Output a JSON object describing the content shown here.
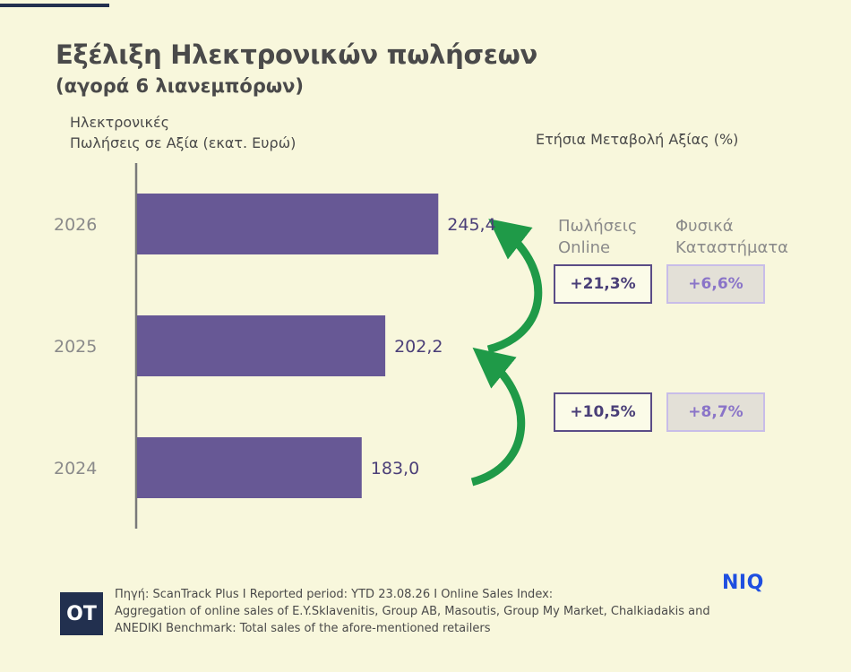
{
  "header": {
    "title": "Εξέλιξη Ηλεκτρονικών πωλήσεων",
    "subtitle": "(αγορά 6 λιανεμπόρων)"
  },
  "axis": {
    "left_label_line1": "Ηλεκτρονικές",
    "left_label_line2": "Πωλήσεις σε Αξία (εκατ. Ευρώ)",
    "right_label": "Ετήσια Μεταβολή Αξίας (%)"
  },
  "changes": {
    "online_header_line1": "Πωλήσεις",
    "online_header_line2": "Online",
    "physical_header_line1": "Φυσικά",
    "physical_header_line2": "Καταστήματα",
    "rows": [
      {
        "online": "+21,3%",
        "physical": "+6,6%"
      },
      {
        "online": "+10,5%",
        "physical": "+8,7%"
      }
    ]
  },
  "chart_data": {
    "type": "bar",
    "orientation": "horizontal",
    "categories": [
      "2026",
      "2025",
      "2024"
    ],
    "values": [
      245.4,
      202.2,
      183.0
    ],
    "value_labels": [
      "245,4",
      "202,2",
      "183,0"
    ],
    "xlim": [
      0,
      270
    ],
    "grid": false,
    "colors": {
      "bar": "#675895",
      "label": "#4b3f78",
      "arrow": "#1f9a48"
    }
  },
  "footer": {
    "source_line1": "Πηγή: ScanTrack Plus I Reported period: YTD 23.08.26 I Online Sales Index:",
    "source_line2": "Aggregation of online sales of E.Y.Sklavenitis, Group AB, Masoutis, Group My Market, Chalkiadakis and",
    "source_line3": "ANEDIKI Benchmark: Total sales of the afore-mentioned retailers",
    "brand_badge": "OT",
    "brand_logo": "NIQ"
  }
}
